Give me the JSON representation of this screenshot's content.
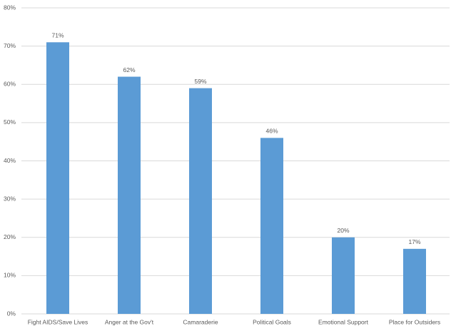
{
  "chart_data": {
    "type": "bar",
    "categories": [
      "Fight AIDS/Save Lives",
      "Anger at the Gov't",
      "Camaraderie",
      "Political Goals",
      "Emotional Support",
      "Place for Outsiders"
    ],
    "values": [
      71,
      62,
      59,
      46,
      20,
      17
    ],
    "value_labels": [
      "71%",
      "62%",
      "59%",
      "46%",
      "20%",
      "17%"
    ],
    "color": "#5b9bd5",
    "ylim": [
      0,
      80
    ],
    "yticks": [
      {
        "value": 0,
        "label": "0%"
      },
      {
        "value": 10,
        "label": "10%"
      },
      {
        "value": 20,
        "label": "20%"
      },
      {
        "value": 30,
        "label": "30%"
      },
      {
        "value": 40,
        "label": "40%"
      },
      {
        "value": 50,
        "label": "50%"
      },
      {
        "value": 60,
        "label": "60%"
      },
      {
        "value": 70,
        "label": "70%"
      },
      {
        "value": 80,
        "label": "80%"
      }
    ],
    "grid": true
  }
}
